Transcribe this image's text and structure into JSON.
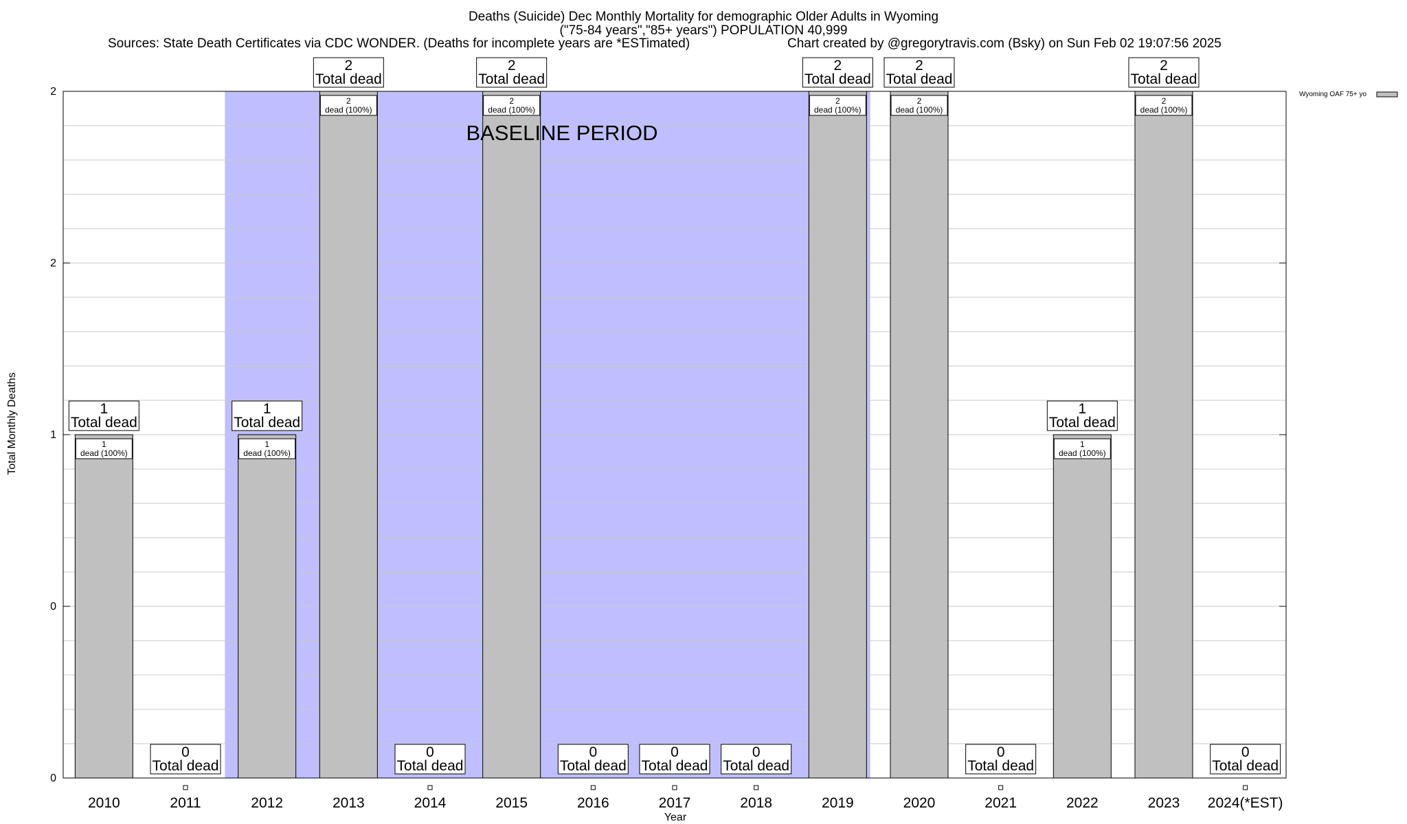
{
  "header": {
    "title_line1": "Deaths (Suicide) Dec Monthly Mortality for demographic Older Adults in Wyoming",
    "title_line2": "(\"75-84 years\",\"85+ years\") POPULATION 40,999",
    "sources": "Sources: State Death Certificates via CDC WONDER. (Deaths for incomplete years are *ESTimated)",
    "credit": "Chart created by @gregorytravis.com (Bsky) on Sun Feb 02 19:07:56 2025"
  },
  "chart_data": {
    "type": "bar",
    "categories": [
      "2010",
      "2011",
      "2012",
      "2013",
      "2014",
      "2015",
      "2016",
      "2017",
      "2018",
      "2019",
      "2020",
      "2021",
      "2022",
      "2023",
      "2024(*EST)"
    ],
    "series": [
      {
        "name": "Wyoming OAF 75+ yo",
        "values": [
          1,
          0,
          1,
          2,
          0,
          2,
          0,
          0,
          0,
          2,
          2,
          0,
          1,
          2,
          0
        ]
      }
    ],
    "xlabel": "Year",
    "ylabel": "Total Monthly Deaths",
    "ylim": [
      0,
      2
    ],
    "y_tick_labels": [
      "0",
      "0",
      "1",
      "2",
      "2"
    ],
    "y_tick_values": [
      0,
      0.5,
      1,
      1.5,
      2
    ],
    "total_label_suffix": "Total dead",
    "inner_label_suffix": "dead (100%)",
    "annotation": "BASELINE PERIOD",
    "baseline_period": [
      "2012",
      "2019"
    ],
    "legend": "top-right",
    "grid": true,
    "colors": {
      "bar": "#c0c0c0",
      "baseline": "#bfbffe",
      "bar_border": "#000000"
    }
  }
}
